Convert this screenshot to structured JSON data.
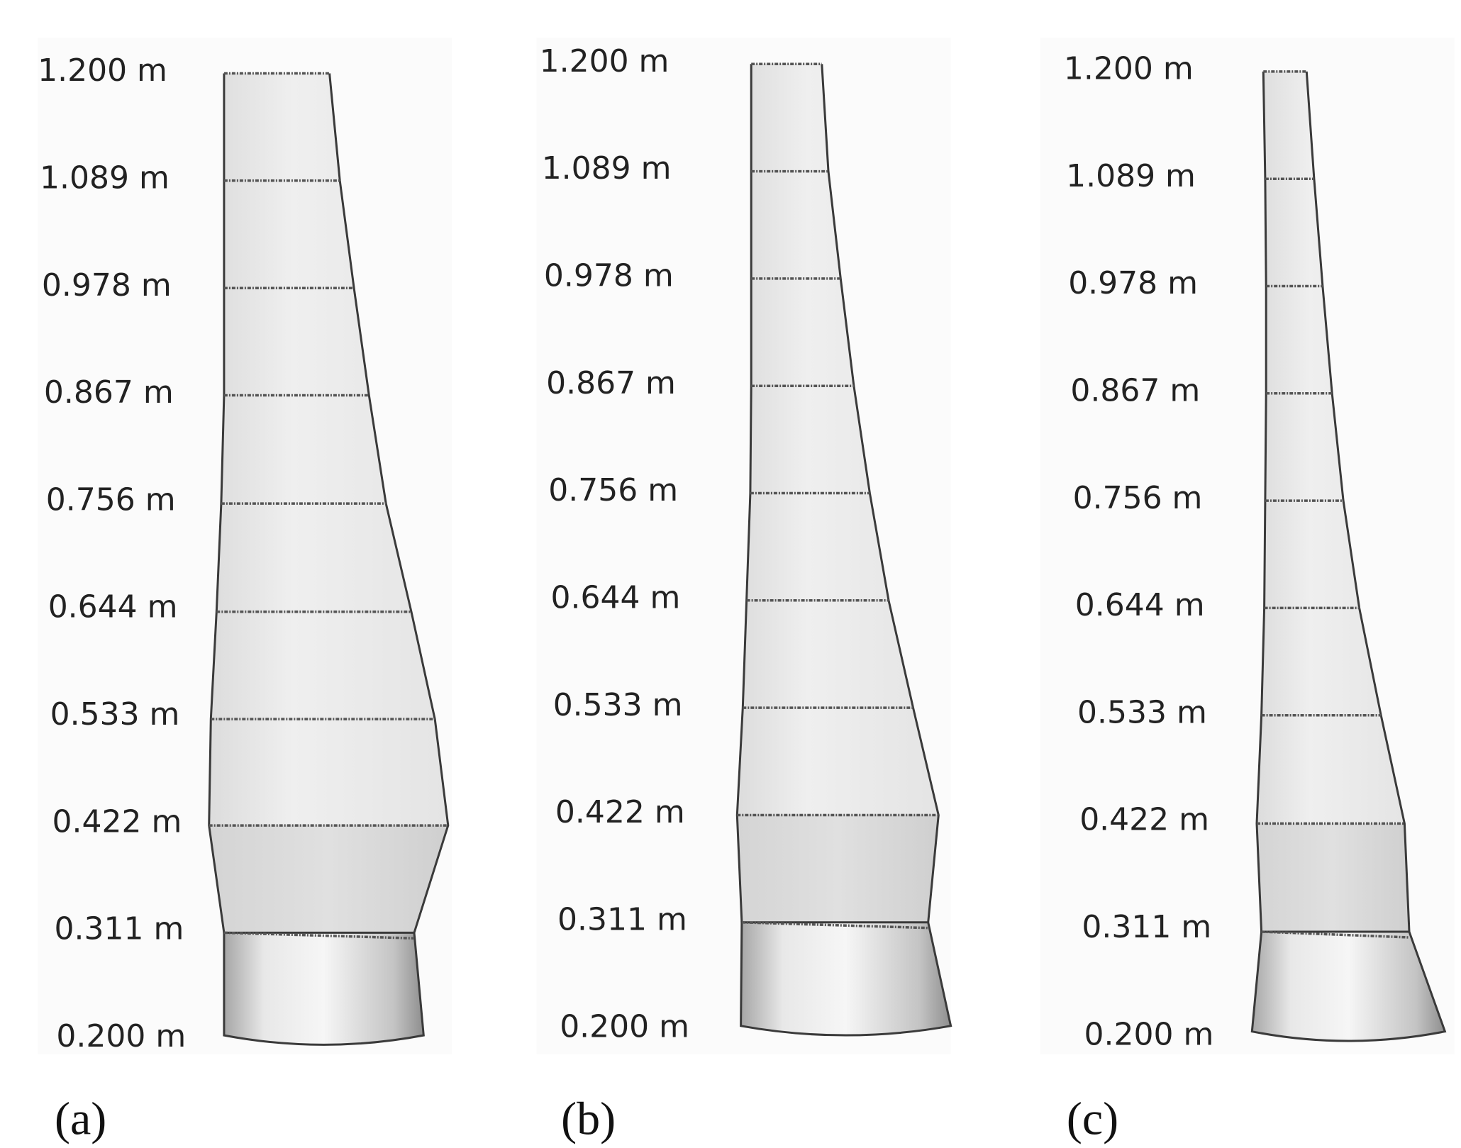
{
  "colors": {
    "blade_fill_top": "#ececec",
    "blade_fill_mid": "#e2e2e2",
    "hub_light": "#f4f4f4",
    "hub_dark": "#9a9a9a",
    "outline": "#3a3a3a",
    "section_line": "#555555",
    "label_text": "#222222"
  },
  "station_labels": [
    "1.200 m",
    "1.089 m",
    "0.978 m",
    "0.867 m",
    "0.756 m",
    "0.644 m",
    "0.533 m",
    "0.422 m",
    "0.311 m",
    "0.200 m"
  ],
  "panels": [
    {
      "caption": "(a)"
    },
    {
      "caption": "(b)"
    },
    {
      "caption": "(c)"
    }
  ]
}
